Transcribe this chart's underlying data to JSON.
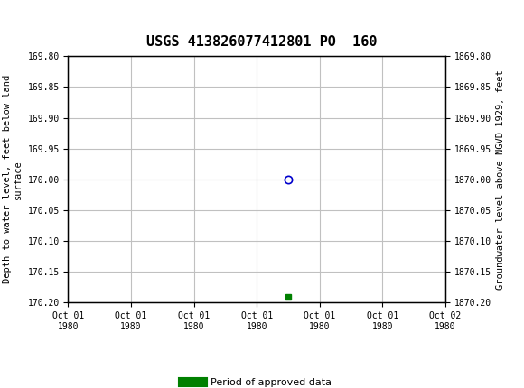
{
  "title": "USGS 413826077412801 PO  160",
  "ylabel_left": "Depth to water level, feet below land\nsurface",
  "ylabel_right": "Groundwater level above NGVD 1929, feet",
  "ylim_left": [
    169.8,
    170.2
  ],
  "ylim_right": [
    1869.8,
    1870.2
  ],
  "yticks_left": [
    169.8,
    169.85,
    169.9,
    169.95,
    170.0,
    170.05,
    170.1,
    170.15,
    170.2
  ],
  "yticks_right": [
    1869.8,
    1869.85,
    1869.9,
    1869.95,
    1870.0,
    1870.05,
    1870.1,
    1870.15,
    1870.2
  ],
  "point_x_circle": 3.5,
  "point_y_circle": 170.0,
  "point_x_square": 3.5,
  "point_y_square": 170.19,
  "circle_color": "#0000cc",
  "square_color": "#008000",
  "header_color": "#1a6b3c",
  "background_color": "#ffffff",
  "grid_color": "#c0c0c0",
  "legend_label": "Period of approved data",
  "legend_color": "#008000",
  "xlim": [
    0,
    6
  ],
  "xtick_labels": [
    "Oct 01\n1980",
    "Oct 01\n1980",
    "Oct 01\n1980",
    "Oct 01\n1980",
    "Oct 01\n1980",
    "Oct 01\n1980",
    "Oct 02\n1980"
  ],
  "font_family": "DejaVu Sans Mono"
}
